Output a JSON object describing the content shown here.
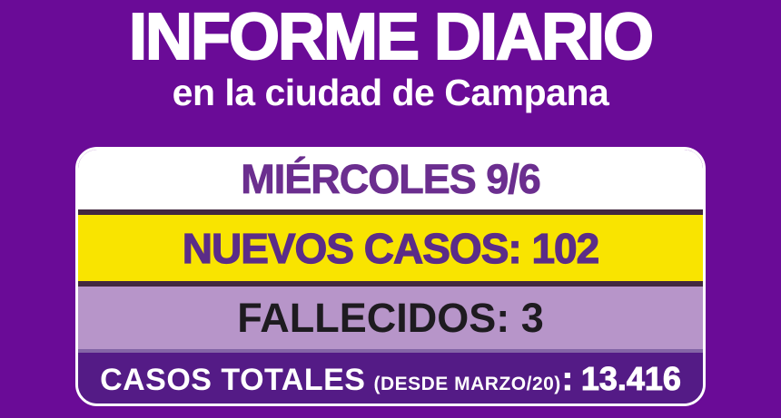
{
  "header": {
    "title": "INFORME DIARIO",
    "subtitle": "en la ciudad de Campana"
  },
  "report": {
    "date": "MIÉRCOLES 9/6",
    "new_cases": "NUEVOS CASOS: 102",
    "deaths": "FALLECIDOS: 3",
    "totals": {
      "label": "CASOS TOTALES",
      "note": "(DESDE MARZO/20)",
      "colon": ":",
      "value": "13.416"
    }
  },
  "colors": {
    "background": "#6a0b97",
    "card_border": "#ffffff",
    "date_bg": "#ffffff",
    "date_text": "#6b2e8f",
    "new_cases_bg": "#f9e400",
    "new_cases_text": "#5b2c88",
    "deaths_bg": "#b795c9",
    "deaths_text": "#1e1b20",
    "totals_bg": "#541b86",
    "totals_text": "#ffffff",
    "divider": "#432840"
  }
}
